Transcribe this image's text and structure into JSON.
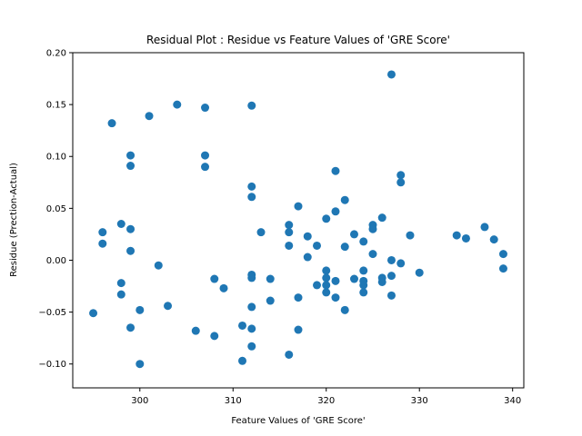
{
  "chart_data": {
    "type": "scatter",
    "title": "Residual Plot : Residue vs Feature Values of 'GRE Score'",
    "xlabel": "Feature Values of 'GRE Score'",
    "ylabel": "Residue (Prection-Actual)",
    "xlim": [
      292.8,
      341.2
    ],
    "ylim": [
      -0.123,
      0.2
    ],
    "xticks": [
      300,
      310,
      320,
      330,
      340
    ],
    "yticks": [
      -0.1,
      -0.05,
      0.0,
      0.05,
      0.1,
      0.15,
      0.2
    ],
    "ytick_labels": [
      "−0.10",
      "−0.05",
      "0.00",
      "0.05",
      "0.10",
      "0.15",
      "0.20"
    ],
    "grid": false,
    "marker_color": "#1f77b4",
    "points": [
      [
        295,
        -0.051
      ],
      [
        296,
        0.027
      ],
      [
        296,
        0.016
      ],
      [
        297,
        0.132
      ],
      [
        298,
        0.035
      ],
      [
        298,
        -0.022
      ],
      [
        298,
        -0.033
      ],
      [
        299,
        0.101
      ],
      [
        299,
        0.091
      ],
      [
        299,
        0.03
      ],
      [
        299,
        0.009
      ],
      [
        299,
        -0.065
      ],
      [
        300,
        -0.048
      ],
      [
        300,
        -0.1
      ],
      [
        301,
        0.139
      ],
      [
        302,
        -0.005
      ],
      [
        303,
        -0.044
      ],
      [
        304,
        0.15
      ],
      [
        306,
        -0.068
      ],
      [
        307,
        0.147
      ],
      [
        307,
        0.101
      ],
      [
        307,
        0.09
      ],
      [
        308,
        -0.018
      ],
      [
        308,
        -0.073
      ],
      [
        309,
        -0.027
      ],
      [
        311,
        -0.063
      ],
      [
        311,
        -0.097
      ],
      [
        312,
        0.149
      ],
      [
        312,
        0.071
      ],
      [
        312,
        0.061
      ],
      [
        312,
        -0.014
      ],
      [
        312,
        -0.017
      ],
      [
        312,
        -0.045
      ],
      [
        312,
        -0.066
      ],
      [
        312,
        -0.083
      ],
      [
        313,
        0.027
      ],
      [
        314,
        -0.018
      ],
      [
        314,
        -0.039
      ],
      [
        316,
        0.034
      ],
      [
        316,
        0.027
      ],
      [
        316,
        0.014
      ],
      [
        316,
        -0.091
      ],
      [
        317,
        0.052
      ],
      [
        317,
        -0.036
      ],
      [
        317,
        -0.067
      ],
      [
        318,
        0.023
      ],
      [
        318,
        0.003
      ],
      [
        319,
        0.014
      ],
      [
        319,
        -0.024
      ],
      [
        320,
        0.04
      ],
      [
        320,
        -0.01
      ],
      [
        320,
        -0.017
      ],
      [
        320,
        -0.024
      ],
      [
        320,
        -0.031
      ],
      [
        321,
        0.086
      ],
      [
        321,
        0.047
      ],
      [
        321,
        -0.02
      ],
      [
        321,
        -0.036
      ],
      [
        322,
        0.058
      ],
      [
        322,
        0.013
      ],
      [
        322,
        -0.048
      ],
      [
        323,
        0.025
      ],
      [
        323,
        -0.018
      ],
      [
        324,
        0.018
      ],
      [
        324,
        -0.01
      ],
      [
        324,
        -0.02
      ],
      [
        324,
        -0.024
      ],
      [
        324,
        -0.031
      ],
      [
        325,
        0.034
      ],
      [
        325,
        0.03
      ],
      [
        325,
        0.006
      ],
      [
        326,
        0.041
      ],
      [
        326,
        -0.017
      ],
      [
        326,
        -0.021
      ],
      [
        327,
        0.179
      ],
      [
        327,
        0.0
      ],
      [
        327,
        -0.015
      ],
      [
        327,
        -0.034
      ],
      [
        328,
        0.082
      ],
      [
        328,
        0.075
      ],
      [
        328,
        -0.003
      ],
      [
        329,
        0.024
      ],
      [
        330,
        -0.012
      ],
      [
        334,
        0.024
      ],
      [
        335,
        0.021
      ],
      [
        337,
        0.032
      ],
      [
        338,
        0.02
      ],
      [
        339,
        0.006
      ],
      [
        339,
        -0.008
      ]
    ]
  }
}
